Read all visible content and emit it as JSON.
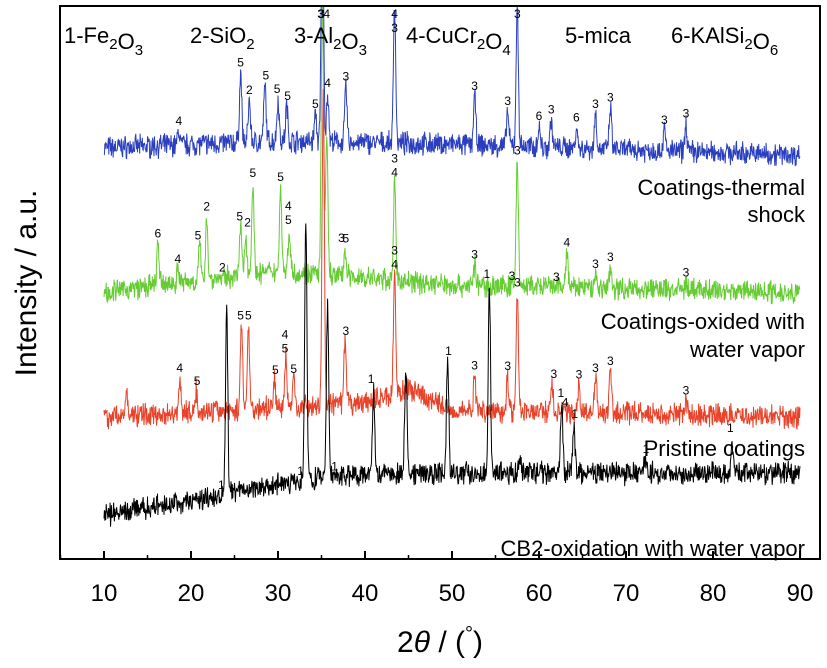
{
  "chart_data": {
    "type": "line",
    "xlabel": "2θ / (°)",
    "ylabel": "Intensity / a.u.",
    "xlim": [
      5,
      90
    ],
    "xticks": [
      10,
      20,
      30,
      40,
      50,
      60,
      70,
      80,
      90
    ],
    "y_ticks_shown": false,
    "legend": [
      {
        "id": 1,
        "text": "1-Fe",
        "sub1": "2",
        "mid": "O",
        "sub2": "3",
        "end": ""
      },
      {
        "id": 2,
        "text": "2-SiO",
        "sub1": "2",
        "mid": "",
        "sub2": "",
        "end": ""
      },
      {
        "id": 3,
        "text": "3-Al",
        "sub1": "2",
        "mid": "O",
        "sub2": "3",
        "end": ""
      },
      {
        "id": 4,
        "text": "4-CuCr",
        "sub1": "2",
        "mid": "O",
        "sub2": "4",
        "end": ""
      },
      {
        "id": 5,
        "text": "5-mica",
        "sub1": "",
        "mid": "",
        "sub2": "",
        "end": ""
      },
      {
        "id": 6,
        "text": "6-KAlSi",
        "sub1": "2",
        "mid": "O",
        "sub2": "6",
        "end": ""
      }
    ],
    "series": [
      {
        "name": "Coatings-thermal shock",
        "label_lines": [
          "Coatings-thermal",
          "shock"
        ],
        "color": "#2a3fbf",
        "offset": 75,
        "baseline": [
          [
            10,
            2
          ],
          [
            30,
            3
          ],
          [
            50,
            2.5
          ],
          [
            90,
            1
          ]
        ],
        "peaks": [
          [
            18.6,
            2
          ],
          [
            25.7,
            10
          ],
          [
            26.7,
            6
          ],
          [
            28.5,
            8
          ],
          [
            30.0,
            6
          ],
          [
            31.0,
            5
          ],
          [
            34.3,
            4
          ],
          [
            35.1,
            38
          ],
          [
            35.7,
            7
          ],
          [
            37.8,
            8
          ],
          [
            43.4,
            20
          ],
          [
            52.6,
            7
          ],
          [
            56.4,
            5
          ],
          [
            57.5,
            20
          ],
          [
            60.0,
            3
          ],
          [
            61.4,
            4
          ],
          [
            64.3,
            3
          ],
          [
            66.5,
            5
          ],
          [
            68.2,
            6
          ],
          [
            74.4,
            3
          ],
          [
            76.9,
            4
          ]
        ],
        "labels": [
          {
            "x": 18.6,
            "text": "4"
          },
          {
            "x": 25.7,
            "text": "5"
          },
          {
            "x": 26.7,
            "text": "2"
          },
          {
            "x": 28.6,
            "text": "5"
          },
          {
            "x": 29.9,
            "text": "5"
          },
          {
            "x": 31.1,
            "text": "5"
          },
          {
            "x": 34.3,
            "text": "5"
          },
          {
            "x": 35.0,
            "text": "3"
          },
          {
            "x": 35.7,
            "text": "4"
          },
          {
            "x": 37.8,
            "text": "3"
          },
          {
            "x": 43.4,
            "text": "4"
          },
          {
            "x": 43.4,
            "text": "3"
          },
          {
            "x": 52.6,
            "text": "3"
          },
          {
            "x": 56.4,
            "text": "3"
          },
          {
            "x": 57.5,
            "text": "3"
          },
          {
            "x": 60.0,
            "text": "6"
          },
          {
            "x": 61.4,
            "text": "3"
          },
          {
            "x": 64.3,
            "text": "6"
          },
          {
            "x": 66.5,
            "text": "3"
          },
          {
            "x": 68.2,
            "text": "3"
          },
          {
            "x": 74.4,
            "text": "3"
          },
          {
            "x": 76.9,
            "text": "3"
          }
        ]
      },
      {
        "name": "Coatings-oxided with water vapor",
        "label_lines": [
          "Coatings-oxided with",
          "water vapor"
        ],
        "color": "#66cc33",
        "offset": 50,
        "baseline": [
          [
            10,
            1
          ],
          [
            30,
            4
          ],
          [
            50,
            2
          ],
          [
            90,
            1
          ]
        ],
        "peaks": [
          [
            16.2,
            6
          ],
          [
            18.5,
            2
          ],
          [
            21.0,
            5
          ],
          [
            21.8,
            9
          ],
          [
            25.7,
            7
          ],
          [
            26.3,
            6
          ],
          [
            27.1,
            13
          ],
          [
            30.3,
            12
          ],
          [
            31.3,
            6
          ],
          [
            35.1,
            40
          ],
          [
            35.6,
            20
          ],
          [
            37.7,
            4
          ],
          [
            43.4,
            14
          ],
          [
            52.6,
            3
          ],
          [
            57.5,
            18
          ],
          [
            63.2,
            5
          ],
          [
            66.5,
            2
          ],
          [
            68.2,
            3
          ],
          [
            76.9,
            1
          ]
        ],
        "labels": [
          {
            "x": 16.2,
            "text": "6"
          },
          {
            "x": 18.5,
            "text": "4"
          },
          {
            "x": 20.8,
            "text": "5"
          },
          {
            "x": 21.8,
            "text": "2"
          },
          {
            "x": 23.6,
            "text": "2"
          },
          {
            "x": 25.6,
            "text": "5"
          },
          {
            "x": 26.5,
            "text": "2"
          },
          {
            "x": 27.1,
            "text": "5"
          },
          {
            "x": 30.3,
            "text": "5"
          },
          {
            "x": 31.2,
            "text": "5"
          },
          {
            "x": 31.2,
            "text": "4"
          },
          {
            "x": 34.9,
            "text": "3"
          },
          {
            "x": 35.6,
            "text": "4"
          },
          {
            "x": 37.3,
            "text": "3"
          },
          {
            "x": 37.8,
            "text": "5"
          },
          {
            "x": 43.4,
            "text": "4"
          },
          {
            "x": 43.4,
            "text": "3"
          },
          {
            "x": 52.6,
            "text": "3"
          },
          {
            "x": 56.9,
            "text": "3"
          },
          {
            "x": 57.5,
            "text": "3"
          },
          {
            "x": 62.0,
            "text": "3"
          },
          {
            "x": 63.2,
            "text": "4"
          },
          {
            "x": 66.5,
            "text": "3"
          },
          {
            "x": 68.2,
            "text": "3"
          },
          {
            "x": 76.9,
            "text": "3"
          }
        ]
      },
      {
        "name": "Pristine coatings",
        "label_lines": [
          "Pristine coatings"
        ],
        "color": "#e8432a",
        "offset": 25,
        "baseline": [
          [
            10,
            1
          ],
          [
            40,
            3
          ],
          [
            45,
            5
          ],
          [
            50,
            2
          ],
          [
            90,
            1
          ]
        ],
        "peaks": [
          [
            12.6,
            3
          ],
          [
            18.7,
            5
          ],
          [
            20.6,
            3
          ],
          [
            25.8,
            12
          ],
          [
            26.6,
            12
          ],
          [
            29.6,
            4
          ],
          [
            30.9,
            7
          ],
          [
            31.8,
            4
          ],
          [
            35.2,
            45
          ],
          [
            37.7,
            9
          ],
          [
            43.4,
            17
          ],
          [
            52.6,
            5
          ],
          [
            56.4,
            5
          ],
          [
            57.5,
            17
          ],
          [
            61.5,
            4
          ],
          [
            64.6,
            4
          ],
          [
            66.5,
            5
          ],
          [
            68.2,
            6
          ],
          [
            76.9,
            2
          ]
        ],
        "labels": [
          {
            "x": 18.7,
            "text": "4"
          },
          {
            "x": 20.7,
            "text": "5"
          },
          {
            "x": 25.7,
            "text": "5"
          },
          {
            "x": 26.6,
            "text": "5"
          },
          {
            "x": 29.7,
            "text": "5"
          },
          {
            "x": 30.8,
            "text": "5"
          },
          {
            "x": 30.8,
            "text": "4"
          },
          {
            "x": 31.8,
            "text": "5"
          },
          {
            "x": 37.8,
            "text": "3"
          },
          {
            "x": 43.4,
            "text": "4"
          },
          {
            "x": 43.4,
            "text": "3"
          },
          {
            "x": 52.6,
            "text": "3"
          },
          {
            "x": 56.4,
            "text": "3"
          },
          {
            "x": 57.5,
            "text": "3"
          },
          {
            "x": 61.7,
            "text": "3"
          },
          {
            "x": 63.0,
            "text": "4"
          },
          {
            "x": 64.6,
            "text": "3"
          },
          {
            "x": 66.5,
            "text": "3"
          },
          {
            "x": 68.2,
            "text": "3"
          },
          {
            "x": 76.9,
            "text": "3"
          }
        ]
      },
      {
        "name": "CB2-oxidation with water vapor",
        "label_lines": [
          "CB2-oxidation with water vapor"
        ],
        "color": "#000000",
        "offset": 0,
        "baseline": [
          [
            10,
            0
          ],
          [
            20,
            2
          ],
          [
            30,
            4.5
          ],
          [
            40,
            6
          ],
          [
            60,
            6
          ],
          [
            90,
            6
          ]
        ],
        "peaks": [
          [
            24.1,
            27
          ],
          [
            33.2,
            38
          ],
          [
            35.7,
            25
          ],
          [
            41.0,
            12
          ],
          [
            44.7,
            15
          ],
          [
            49.5,
            16
          ],
          [
            54.3,
            27
          ],
          [
            57.8,
            2
          ],
          [
            62.6,
            10
          ],
          [
            64.0,
            7
          ],
          [
            72.2,
            2
          ],
          [
            82.2,
            5
          ]
        ],
        "labels": [
          {
            "x": 23.5,
            "text": "1"
          },
          {
            "x": 32.6,
            "text": "1"
          },
          {
            "x": 36.5,
            "text": "1"
          },
          {
            "x": 40.7,
            "text": "1"
          },
          {
            "x": 49.6,
            "text": "1"
          },
          {
            "x": 54.0,
            "text": "1"
          },
          {
            "x": 62.5,
            "text": "1"
          },
          {
            "x": 64.1,
            "text": "1"
          },
          {
            "x": 72.3,
            "text": "1"
          },
          {
            "x": 82.0,
            "text": "1"
          }
        ]
      }
    ]
  }
}
